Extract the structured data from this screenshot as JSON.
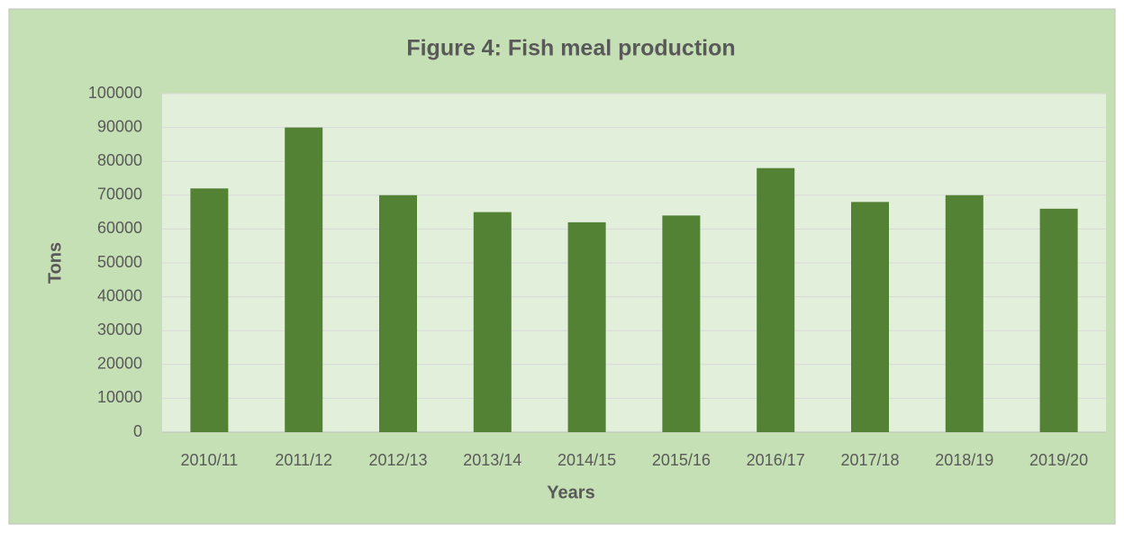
{
  "chart_data": {
    "type": "bar",
    "title": "Figure 4: Fish meal production",
    "x_label": "Years",
    "y_label": "Tons",
    "categories": [
      "2010/11",
      "2011/12",
      "2012/13",
      "2013/14",
      "2014/15",
      "2015/16",
      "2016/17",
      "2017/18",
      "2018/19",
      "2019/20"
    ],
    "values": [
      72000,
      90000,
      70000,
      65000,
      62000,
      64000,
      78000,
      68000,
      70000,
      66000
    ],
    "color": "#548235",
    "ylim": [
      0,
      100000
    ],
    "yticks": [
      0,
      10000,
      20000,
      30000,
      40000,
      50000,
      60000,
      70000,
      80000,
      90000,
      100000
    ],
    "grid": true
  }
}
